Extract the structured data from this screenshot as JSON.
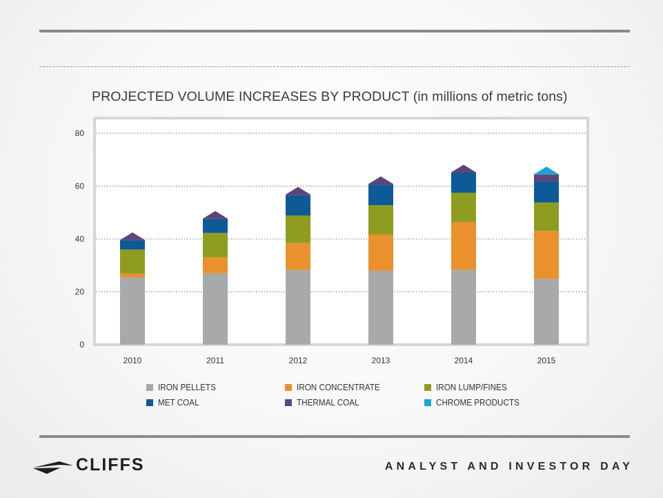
{
  "page": {
    "brand": "CLIFFS",
    "tagline": "ANALYST AND INVESTOR DAY",
    "logo_icon": "cliffs-arrow-logo-icon"
  },
  "chart_data": {
    "type": "bar",
    "stacked": true,
    "title": "PROJECTED VOLUME INCREASES BY PRODUCT (in millions of metric tons)",
    "xlabel": "",
    "ylabel": "",
    "categories": [
      "2010",
      "2011",
      "2012",
      "2013",
      "2014",
      "2015"
    ],
    "ylim": [
      0,
      80
    ],
    "yticks": [
      0,
      20,
      40,
      60,
      80
    ],
    "grid": "horizontal-dotted",
    "legend_position": "bottom",
    "series": [
      {
        "name": "IRON PELLETS",
        "color": "#a8a9ab",
        "values": [
          25.5,
          27,
          28.3,
          28,
          28.3,
          24.9
        ]
      },
      {
        "name": "IRON CONCENTRATE",
        "color": "#e8912d",
        "values": [
          1.4,
          6.1,
          10.2,
          13.7,
          18.1,
          18.2
        ]
      },
      {
        "name": "IRON LUMP/FINES",
        "color": "#8e9d1f",
        "values": [
          9.1,
          9.2,
          10.4,
          11.1,
          11.1,
          10.7
        ]
      },
      {
        "name": "MET COAL",
        "color": "#0d5a97",
        "values": [
          3.5,
          5.3,
          7.6,
          7.7,
          7.6,
          8.0
        ]
      },
      {
        "name": "THERMAL COAL",
        "color": "#5c4679",
        "values": [
          3.0,
          3.0,
          3.2,
          3.2,
          3.0,
          2.6
        ]
      },
      {
        "name": "CHROME PRODUCTS",
        "color": "#1fa3d6",
        "values": [
          0,
          0,
          0,
          0,
          0,
          3.0
        ]
      }
    ]
  }
}
